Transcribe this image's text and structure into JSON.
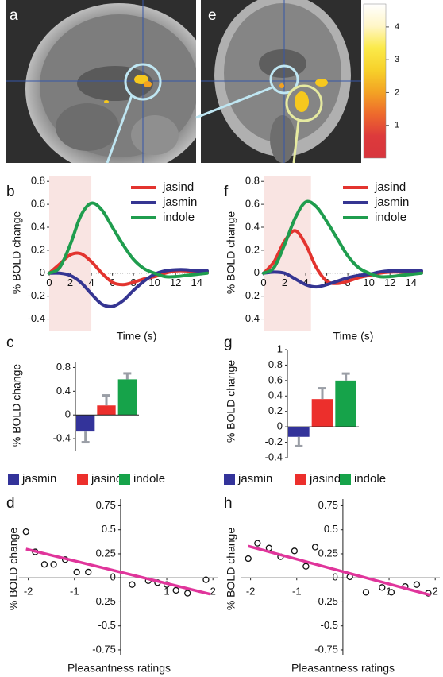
{
  "images": {
    "labels": [
      "a",
      "e"
    ]
  },
  "chart_data": [
    {
      "type": "colorbar",
      "ylim": [
        0,
        4.7
      ],
      "yticks": [
        1,
        2,
        3,
        4
      ],
      "colors": [
        "#d8353d",
        "#dd3a3c",
        "#ee6a2c",
        "#f3a324",
        "#f7d12a",
        "#fbea4a",
        "#fff6c8",
        "#ffffff"
      ]
    },
    {
      "type": "line",
      "label": "b",
      "ylabel": "% BOLD change",
      "xlabel": "Time (s)",
      "x": [
        0,
        1,
        2,
        3,
        4,
        5,
        6,
        7,
        8,
        9,
        10,
        11,
        12,
        13,
        14,
        15
      ],
      "xlim": [
        0,
        15
      ],
      "xticks": [
        0,
        2,
        4,
        6,
        8,
        10,
        12,
        14
      ],
      "ylim": [
        -0.5,
        0.85
      ],
      "yticks": [
        -0.4,
        -0.2,
        0,
        0.2,
        0.4,
        0.6,
        0.8
      ],
      "shaded_x": [
        0,
        4
      ],
      "shade_color": "#f9e4e2",
      "series": [
        {
          "name": "jasind",
          "color": "#e3342f",
          "values": [
            0,
            0.08,
            0.16,
            0.17,
            0.1,
            0,
            -0.08,
            -0.1,
            -0.08,
            -0.05,
            -0.03,
            0,
            0.02,
            0.02,
            0.01,
            0.01
          ]
        },
        {
          "name": "jasmin",
          "color": "#353592",
          "values": [
            0,
            0,
            -0.02,
            -0.08,
            -0.18,
            -0.27,
            -0.29,
            -0.24,
            -0.15,
            -0.07,
            -0.01,
            0.02,
            0.03,
            0.03,
            0.02,
            0.02
          ]
        },
        {
          "name": "indole",
          "color": "#1f9d4e",
          "values": [
            0,
            0.05,
            0.25,
            0.5,
            0.61,
            0.55,
            0.4,
            0.25,
            0.12,
            0.04,
            0,
            -0.03,
            -0.03,
            -0.02,
            -0.01,
            0
          ]
        }
      ]
    },
    {
      "type": "line",
      "label": "f",
      "ylabel": "% BOLD change",
      "xlabel": "Time (s)",
      "x": [
        0,
        1,
        2,
        3,
        4,
        5,
        6,
        7,
        8,
        9,
        10,
        11,
        12,
        13,
        14,
        15
      ],
      "xlim": [
        0,
        15
      ],
      "xticks": [
        0,
        2,
        4,
        6,
        8,
        10,
        12,
        14
      ],
      "ylim": [
        -0.5,
        0.85
      ],
      "yticks": [
        -0.4,
        -0.2,
        0,
        0.2,
        0.4,
        0.6,
        0.8
      ],
      "shaded_x": [
        0,
        4.5
      ],
      "shade_color": "#f9e4e2",
      "series": [
        {
          "name": "jasind",
          "color": "#e3342f",
          "values": [
            0,
            0.1,
            0.28,
            0.37,
            0.25,
            0.05,
            -0.07,
            -0.09,
            -0.07,
            -0.04,
            -0.02,
            0,
            0.01,
            0.01,
            0.01,
            0.01
          ]
        },
        {
          "name": "jasmin",
          "color": "#353592",
          "values": [
            0,
            0.01,
            0,
            -0.05,
            -0.1,
            -0.12,
            -0.1,
            -0.07,
            -0.04,
            -0.02,
            -0.01,
            0.01,
            0.02,
            0.02,
            0.02,
            0.02
          ]
        },
        {
          "name": "indole",
          "color": "#1f9d4e",
          "values": [
            0,
            0.05,
            0.25,
            0.48,
            0.62,
            0.58,
            0.45,
            0.3,
            0.15,
            0.05,
            0,
            -0.03,
            -0.03,
            -0.02,
            -0.01,
            0
          ]
        }
      ]
    },
    {
      "type": "bar",
      "label": "c",
      "ylabel": "% BOLD change",
      "ylim": [
        -0.6,
        0.9
      ],
      "yticks": [
        -0.4,
        0,
        0.4,
        0.8
      ],
      "error_color": "#9a9ea6",
      "series": [
        {
          "name": "jasmin",
          "color": "#33339a",
          "values": [
            -0.28
          ],
          "errors": [
            0.18
          ]
        },
        {
          "name": "jasind",
          "color": "#ec2f2c",
          "values": [
            0.16
          ],
          "errors": [
            0.17
          ]
        },
        {
          "name": "indole",
          "color": "#16a34a",
          "values": [
            0.6
          ],
          "errors": [
            0.1
          ]
        }
      ]
    },
    {
      "type": "bar",
      "label": "g",
      "ylabel": "% BOLD change",
      "ylim": [
        -0.4,
        1
      ],
      "yticks": [
        -0.4,
        -0.2,
        0,
        0.2,
        0.4,
        0.6,
        0.8,
        1
      ],
      "error_color": "#9a9ea6",
      "series": [
        {
          "name": "jasmin",
          "color": "#33339a",
          "values": [
            -0.13
          ],
          "errors": [
            0.12
          ]
        },
        {
          "name": "jasind",
          "color": "#ec2f2c",
          "values": [
            0.36
          ],
          "errors": [
            0.14
          ]
        },
        {
          "name": "indole",
          "color": "#16a34a",
          "values": [
            0.6
          ],
          "errors": [
            0.09
          ]
        }
      ]
    },
    {
      "type": "scatter",
      "label": "d",
      "ylabel": "% BOLD change",
      "xlabel": "Pleasantness ratings",
      "xlim": [
        -2.2,
        2.1
      ],
      "xticks": [
        -2,
        -1,
        1,
        2
      ],
      "ylim": [
        -0.8,
        0.82
      ],
      "yticks": [
        -0.75,
        -0.5,
        -0.25,
        0,
        0.25,
        0.5,
        0.75
      ],
      "series": [
        {
          "x": [
            -2.05,
            -1.85,
            -1.65,
            -1.45,
            -1.2,
            -0.95,
            -0.7,
            0.25,
            0.6,
            0.8,
            1.0,
            1.2,
            1.45,
            1.85
          ],
          "values": [
            0.48,
            0.27,
            0.14,
            0.14,
            0.19,
            0.06,
            0.06,
            -0.07,
            -0.03,
            -0.05,
            -0.07,
            -0.13,
            -0.16,
            -0.02
          ]
        }
      ],
      "fit": {
        "color": "#e0359b",
        "x": [
          -2.05,
          1.95
        ],
        "values": [
          0.3,
          -0.17
        ]
      }
    },
    {
      "type": "scatter",
      "label": "h",
      "ylabel": "% BOLD change",
      "xlabel": "Pleasantness ratings",
      "xlim": [
        -2.2,
        2.1
      ],
      "xticks": [
        -2,
        -1,
        1,
        2
      ],
      "ylim": [
        -0.8,
        0.82
      ],
      "yticks": [
        -0.75,
        -0.5,
        -0.25,
        0,
        0.25,
        0.5,
        0.75
      ],
      "series": [
        {
          "x": [
            -2.05,
            -1.85,
            -1.6,
            -1.35,
            -1.05,
            -0.8,
            -0.6,
            0.15,
            0.5,
            0.85,
            1.05,
            1.35,
            1.6,
            1.85
          ],
          "values": [
            0.2,
            0.36,
            0.31,
            0.22,
            0.28,
            0.12,
            0.32,
            0.01,
            -0.15,
            -0.1,
            -0.15,
            -0.09,
            -0.07,
            -0.16
          ]
        }
      ],
      "fit": {
        "color": "#e0359b",
        "x": [
          -2.05,
          1.9
        ],
        "values": [
          0.33,
          -0.18
        ]
      }
    }
  ]
}
